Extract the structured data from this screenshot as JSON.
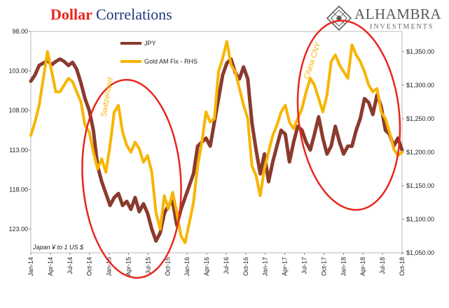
{
  "header": {
    "title_part1": "Dollar",
    "title_part2": "Correlations"
  },
  "logo": {
    "name": "ALHAMBRA",
    "sub": "INVESTMENTS",
    "icon": "alhambra-diamond-icon"
  },
  "colors": {
    "jpy": "#8b3a2e",
    "gold": "#f7b500",
    "ellipse": "#e8261c",
    "title_red": "#e8261c",
    "title_blue": "#1f3a7a"
  },
  "chart_data": {
    "type": "line",
    "x_ticks": [
      "Jan-14",
      "Apr-14",
      "Jul-14",
      "Oct-14",
      "Jan-15",
      "Apr-15",
      "Jul-15",
      "Oct-15",
      "Jan-16",
      "Apr-16",
      "Jul-16",
      "Oct-16",
      "Jan-17",
      "Apr-17",
      "Jul-17",
      "Oct-17",
      "Jan-18",
      "Apr-18",
      "Jul-18",
      "Oct-18"
    ],
    "left_axis": {
      "ticks": [
        "98.00",
        "103.00",
        "108.00",
        "113.00",
        "118.00",
        "123.00"
      ],
      "range": [
        98,
        126
      ],
      "inverted": true
    },
    "right_axis": {
      "ticks": [
        "$1,350.00",
        "$1,300.00",
        "$1,250.00",
        "$1,200.00",
        "$1,150.00",
        "$1,100.00",
        "$1,050.00"
      ],
      "range": [
        1050,
        1380
      ]
    },
    "legend": {
      "position": "top-left",
      "items": [
        "JPY",
        "Gold AM Fix - RHS"
      ]
    },
    "series": [
      {
        "name": "JPY",
        "axis": "left",
        "values": [
          104.3,
          103.5,
          102.3,
          102.0,
          101.7,
          102.2,
          101.8,
          101.5,
          101.8,
          102.3,
          101.9,
          102.8,
          104.5,
          106.5,
          108.0,
          110.5,
          115.0,
          117.0,
          118.5,
          120.0,
          119.0,
          118.5,
          120.0,
          119.5,
          120.5,
          119.0,
          120.8,
          119.8,
          121.0,
          123.0,
          124.5,
          123.5,
          121.0,
          120.0,
          119.5,
          122.5,
          120.5,
          119.0,
          117.5,
          116.0,
          112.5,
          112.0,
          111.5,
          112.5,
          109.5,
          106.5,
          103.5,
          102.0,
          101.5,
          103.2,
          104.0,
          102.5,
          104.0,
          109.5,
          113.0,
          116.0,
          113.5,
          117.0,
          114.5,
          112.5,
          110.5,
          111.0,
          114.5,
          112.0,
          110.0,
          110.5,
          112.0,
          113.0,
          111.0,
          108.8,
          111.5,
          113.5,
          112.5,
          110.0,
          112.0,
          113.5,
          112.5,
          112.5,
          110.5,
          109.0,
          106.5,
          107.0,
          108.5,
          106.0,
          107.5,
          110.5,
          111.0,
          112.5,
          111.5,
          113.0
        ]
      },
      {
        "name": "Gold AM Fix - RHS",
        "axis": "right",
        "values": [
          1225,
          1245,
          1270,
          1310,
          1350,
          1320,
          1290,
          1290,
          1300,
          1310,
          1305,
          1290,
          1275,
          1240,
          1230,
          1200,
          1175,
          1190,
          1170,
          1210,
          1260,
          1270,
          1230,
          1210,
          1200,
          1215,
          1205,
          1185,
          1195,
          1170,
          1110,
          1085,
          1135,
          1115,
          1140,
          1110,
          1075,
          1065,
          1095,
          1125,
          1180,
          1215,
          1260,
          1245,
          1250,
          1320,
          1340,
          1365,
          1330,
          1320,
          1295,
          1270,
          1250,
          1180,
          1165,
          1135,
          1175,
          1200,
          1225,
          1240,
          1260,
          1270,
          1245,
          1235,
          1250,
          1265,
          1290,
          1310,
          1300,
          1280,
          1260,
          1285,
          1335,
          1345,
          1330,
          1320,
          1310,
          1360,
          1345,
          1335,
          1320,
          1300,
          1290,
          1295,
          1260,
          1250,
          1230,
          1205,
          1195,
          1200
        ]
      }
    ],
    "annotations": [
      "Switzerland",
      "China CNY"
    ],
    "note": "Japan ¥ to 1 US $"
  }
}
